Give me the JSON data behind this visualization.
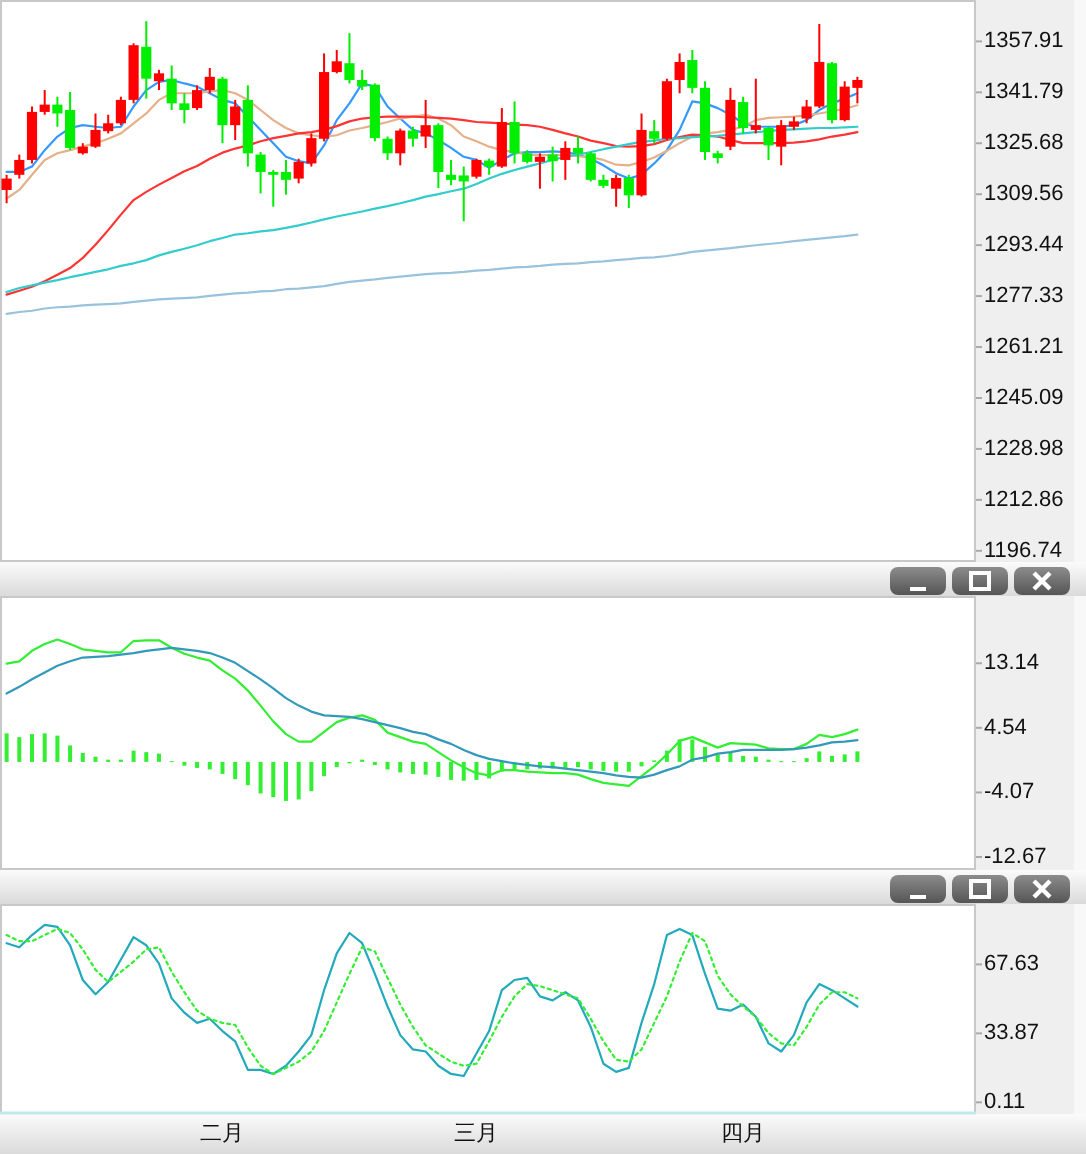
{
  "chart_data": [
    {
      "type": "candlestick",
      "categories": [
        null,
        null,
        null,
        null,
        null,
        null,
        null,
        null,
        null,
        null,
        null,
        null,
        null,
        null,
        null,
        null,
        null,
        null,
        null,
        null,
        null,
        null,
        null,
        null,
        null,
        null,
        null,
        null,
        null,
        null,
        null,
        null,
        null,
        null,
        null,
        null,
        null,
        null,
        null,
        null,
        null,
        null,
        null,
        null,
        null,
        null,
        null,
        null,
        null,
        null,
        null,
        null,
        null,
        null,
        null,
        null,
        null,
        null,
        null,
        null,
        null,
        null,
        null,
        null,
        null,
        null,
        null,
        null
      ],
      "ohlc": [
        [
          1310.9,
          1315.7,
          1306.7,
          1314.5
        ],
        [
          1315.7,
          1322.1,
          1314.5,
          1320.4
        ],
        [
          1320.4,
          1337.3,
          1319.3,
          1335.6
        ],
        [
          1335.6,
          1342.5,
          1334.7,
          1337.9
        ],
        [
          1337.9,
          1340.4,
          1330.9,
          1335.1
        ],
        [
          1336.2,
          1341.9,
          1323.5,
          1324.2
        ],
        [
          1322.5,
          1325.7,
          1322.1,
          1324.6
        ],
        [
          1324.6,
          1335.1,
          1324.2,
          1329.9
        ],
        [
          1329.5,
          1334.7,
          1328.8,
          1332.0
        ],
        [
          1332.0,
          1340.4,
          1331.4,
          1339.4
        ],
        [
          1339.4,
          1357.3,
          1338.3,
          1356.7
        ],
        [
          1356.2,
          1364.3,
          1339.8,
          1346.1
        ],
        [
          1345.3,
          1348.9,
          1342.5,
          1347.8
        ],
        [
          1346.1,
          1350.3,
          1336.2,
          1338.3
        ],
        [
          1338.3,
          1341.5,
          1332.0,
          1336.2
        ],
        [
          1336.8,
          1344.0,
          1336.2,
          1342.5
        ],
        [
          1342.5,
          1349.5,
          1341.5,
          1346.7
        ],
        [
          1346.1,
          1346.7,
          1325.7,
          1331.4
        ],
        [
          1331.4,
          1339.4,
          1326.7,
          1337.3
        ],
        [
          1339.4,
          1344.0,
          1318.3,
          1322.5
        ],
        [
          1322.1,
          1322.9,
          1309.8,
          1316.6
        ],
        [
          1316.6,
          1317.2,
          1305.6,
          1315.7
        ],
        [
          1316.6,
          1320.4,
          1309.4,
          1314.1
        ],
        [
          1314.5,
          1320.8,
          1313.0,
          1319.8
        ],
        [
          1319.3,
          1328.8,
          1318.3,
          1327.3
        ],
        [
          1327.1,
          1354.1,
          1326.3,
          1348.2
        ],
        [
          1348.2,
          1355.2,
          1347.8,
          1351.6
        ],
        [
          1351.0,
          1360.5,
          1344.6,
          1345.7
        ],
        [
          1345.7,
          1348.9,
          1342.5,
          1343.6
        ],
        [
          1344.2,
          1344.6,
          1326.3,
          1327.3
        ],
        [
          1327.1,
          1327.8,
          1320.4,
          1322.5
        ],
        [
          1322.5,
          1330.3,
          1318.7,
          1329.7
        ],
        [
          1329.7,
          1330.9,
          1324.6,
          1327.1
        ],
        [
          1327.8,
          1339.4,
          1324.2,
          1331.4
        ],
        [
          1331.4,
          1332.0,
          1311.5,
          1316.6
        ],
        [
          1315.7,
          1320.4,
          1312.4,
          1314.1
        ],
        [
          1315.5,
          1318.3,
          1301.0,
          1313.6
        ],
        [
          1315.1,
          1320.8,
          1314.5,
          1320.4
        ],
        [
          1320.2,
          1320.8,
          1315.7,
          1318.3
        ],
        [
          1318.3,
          1336.8,
          1317.9,
          1332.4
        ],
        [
          1332.4,
          1338.9,
          1319.3,
          1322.5
        ],
        [
          1322.5,
          1323.5,
          1319.3,
          1319.8
        ],
        [
          1319.8,
          1322.5,
          1311.3,
          1321.4
        ],
        [
          1322.1,
          1324.6,
          1313.6,
          1320.0
        ],
        [
          1320.4,
          1326.3,
          1314.1,
          1324.2
        ],
        [
          1324.2,
          1327.8,
          1319.3,
          1322.5
        ],
        [
          1322.5,
          1322.9,
          1313.6,
          1314.1
        ],
        [
          1314.1,
          1315.7,
          1311.5,
          1312.2
        ],
        [
          1311.3,
          1315.7,
          1305.6,
          1314.7
        ],
        [
          1314.7,
          1315.7,
          1305.2,
          1309.2
        ],
        [
          1309.2,
          1335.1,
          1308.8,
          1329.9
        ],
        [
          1329.5,
          1333.0,
          1325.7,
          1327.1
        ],
        [
          1327.1,
          1346.1,
          1326.7,
          1345.3
        ],
        [
          1345.7,
          1354.1,
          1341.5,
          1351.4
        ],
        [
          1352.0,
          1355.2,
          1341.5,
          1343.2
        ],
        [
          1343.2,
          1345.3,
          1320.4,
          1322.9
        ],
        [
          1322.5,
          1323.3,
          1319.3,
          1321.0
        ],
        [
          1324.6,
          1343.2,
          1323.5,
          1339.4
        ],
        [
          1338.7,
          1340.4,
          1328.8,
          1330.5
        ],
        [
          1329.9,
          1346.1,
          1328.8,
          1331.4
        ],
        [
          1330.5,
          1330.9,
          1320.4,
          1325.0
        ],
        [
          1324.6,
          1333.0,
          1318.7,
          1331.4
        ],
        [
          1330.9,
          1334.1,
          1329.9,
          1332.6
        ],
        [
          1333.5,
          1339.4,
          1332.0,
          1337.3
        ],
        [
          1337.3,
          1363.4,
          1336.8,
          1351.4
        ],
        [
          1351.0,
          1351.4,
          1332.0,
          1333.0
        ],
        [
          1333.0,
          1345.3,
          1332.6,
          1343.6
        ],
        [
          1343.2,
          1346.7,
          1338.3,
          1345.7
        ]
      ],
      "colors": [
        "#ff0000",
        "#ff0000",
        "#ff0000",
        "#ff0000",
        "#00ee00",
        "#00ee00",
        "#ff0000",
        "#ff0000",
        "#ff0000",
        "#ff0000",
        "#ff0000",
        "#00ee00",
        "#ff0000",
        "#00ee00",
        "#00ee00",
        "#ff0000",
        "#ff0000",
        "#00ee00",
        "#ff0000",
        "#00ee00",
        "#00ee00",
        "#00ee00",
        "#00ee00",
        "#ff0000",
        "#ff0000",
        "#ff0000",
        "#ff0000",
        "#00ee00",
        "#00ee00",
        "#00ee00",
        "#00ee00",
        "#ff0000",
        "#00ee00",
        "#ff0000",
        "#00ee00",
        "#00ee00",
        "#00ee00",
        "#ff0000",
        "#00ee00",
        "#ff0000",
        "#00ee00",
        "#00ee00",
        "#ff0000",
        "#00ee00",
        "#ff0000",
        "#00ee00",
        "#00ee00",
        "#00ee00",
        "#ff0000",
        "#00ee00",
        "#ff0000",
        "#00ee00",
        "#ff0000",
        "#ff0000",
        "#00ee00",
        "#00ee00",
        "#00ee00",
        "#ff0000",
        "#00ee00",
        "#ff0000",
        "#00ee00",
        "#ff0000",
        "#ff0000",
        "#ff0000",
        "#ff0000",
        "#00ee00",
        "#ff0000",
        "#ff0000"
      ],
      "series": [
        {
          "type": "line",
          "color": "#3399ff",
          "values": [
            1316.6,
            1316.6,
            1318.3,
            1323.5,
            1327.8,
            1330.5,
            1331.4,
            1330.9,
            1330.5,
            1330.9,
            1337.3,
            1342.5,
            1345.1,
            1345.7,
            1344.6,
            1343.6,
            1341.5,
            1339.4,
            1338.3,
            1334.1,
            1329.9,
            1325.7,
            1321.4,
            1320.0,
            1319.3,
            1325.0,
            1333.0,
            1338.3,
            1344.6,
            1343.6,
            1337.3,
            1333.5,
            1329.9,
            1328.8,
            1326.7,
            1324.2,
            1321.4,
            1320.4,
            1317.9,
            1320.4,
            1322.5,
            1322.9,
            1322.9,
            1323.1,
            1322.9,
            1322.1,
            1320.8,
            1318.7,
            1316.2,
            1314.5,
            1315.7,
            1319.3,
            1323.5,
            1329.9,
            1338.9,
            1338.3,
            1336.8,
            1334.7,
            1332.0,
            1330.9,
            1330.9,
            1330.9,
            1331.4,
            1333.0,
            1336.2,
            1338.3,
            1339.8,
            1341.5
          ]
        },
        {
          "type": "line",
          "color": "#e6b08a",
          "values": [
            1308.2,
            1310.9,
            1315.7,
            1320.4,
            1322.5,
            1323.5,
            1324.6,
            1325.7,
            1327.1,
            1328.8,
            1332.0,
            1335.1,
            1339.4,
            1341.5,
            1341.5,
            1341.5,
            1342.1,
            1342.5,
            1341.5,
            1339.4,
            1336.2,
            1333.0,
            1330.5,
            1328.8,
            1328.2,
            1327.8,
            1328.2,
            1329.7,
            1330.5,
            1331.4,
            1332.4,
            1333.5,
            1334.1,
            1334.7,
            1333.5,
            1331.4,
            1327.8,
            1326.3,
            1324.6,
            1323.5,
            1322.9,
            1322.1,
            1321.9,
            1321.9,
            1321.9,
            1321.6,
            1321.2,
            1320.4,
            1318.9,
            1318.7,
            1319.8,
            1321.2,
            1323.3,
            1325.7,
            1327.8,
            1328.8,
            1329.2,
            1329.9,
            1330.9,
            1333.0,
            1333.7,
            1333.9,
            1334.1,
            1334.5,
            1335.1,
            1335.8,
            1336.6,
            1337.7
          ]
        },
        {
          "type": "line",
          "color": "#ff3333",
          "values": [
            1277.8,
            1279.0,
            1280.3,
            1282.0,
            1284.1,
            1286.2,
            1289.4,
            1293.6,
            1298.2,
            1303.1,
            1307.7,
            1310.3,
            1312.6,
            1314.7,
            1316.8,
            1318.5,
            1320.8,
            1322.7,
            1324.0,
            1325.0,
            1326.3,
            1327.3,
            1328.0,
            1328.8,
            1329.2,
            1329.9,
            1331.1,
            1332.6,
            1333.5,
            1333.9,
            1334.1,
            1334.1,
            1334.1,
            1333.9,
            1333.7,
            1333.5,
            1333.0,
            1332.4,
            1332.2,
            1332.0,
            1331.6,
            1331.4,
            1330.9,
            1329.9,
            1328.8,
            1327.8,
            1326.5,
            1325.7,
            1324.8,
            1324.6,
            1324.8,
            1325.4,
            1326.7,
            1327.6,
            1328.4,
            1328.2,
            1327.8,
            1326.7,
            1325.7,
            1325.7,
            1325.7,
            1325.7,
            1325.9,
            1326.3,
            1326.9,
            1327.8,
            1328.4,
            1329.2
          ]
        },
        {
          "type": "line",
          "color": "#33cccc",
          "values": [
            1278.6,
            1279.9,
            1280.7,
            1281.6,
            1282.4,
            1283.3,
            1284.1,
            1285.0,
            1285.8,
            1286.9,
            1287.7,
            1288.7,
            1290.2,
            1291.3,
            1292.3,
            1293.4,
            1294.7,
            1295.7,
            1296.8,
            1297.2,
            1297.8,
            1298.2,
            1298.9,
            1299.7,
            1300.6,
            1301.6,
            1302.5,
            1303.3,
            1304.1,
            1305.0,
            1305.8,
            1306.7,
            1307.7,
            1308.8,
            1309.6,
            1310.5,
            1311.3,
            1312.8,
            1314.5,
            1316.0,
            1317.2,
            1318.3,
            1319.3,
            1320.4,
            1321.4,
            1322.1,
            1322.9,
            1323.8,
            1324.6,
            1325.4,
            1326.1,
            1326.5,
            1327.1,
            1327.3,
            1327.6,
            1327.8,
            1328.0,
            1328.4,
            1328.8,
            1329.2,
            1329.5,
            1329.9,
            1330.1,
            1330.3,
            1330.5,
            1330.5,
            1330.7,
            1330.9
          ]
        },
        {
          "type": "line",
          "color": "#99c2dd",
          "values": [
            1271.7,
            1272.3,
            1272.7,
            1273.4,
            1273.8,
            1274.0,
            1274.4,
            1274.6,
            1274.8,
            1275.0,
            1275.5,
            1275.9,
            1276.3,
            1276.5,
            1276.7,
            1276.9,
            1277.4,
            1277.8,
            1278.2,
            1278.4,
            1278.8,
            1279.0,
            1279.5,
            1279.7,
            1280.1,
            1280.5,
            1281.2,
            1281.8,
            1282.2,
            1282.6,
            1283.1,
            1283.5,
            1283.9,
            1284.3,
            1284.5,
            1284.7,
            1285.0,
            1285.4,
            1285.6,
            1286.0,
            1286.4,
            1286.6,
            1286.9,
            1287.3,
            1287.5,
            1287.7,
            1288.1,
            1288.3,
            1288.7,
            1289.0,
            1289.4,
            1289.6,
            1290.0,
            1290.6,
            1291.3,
            1291.7,
            1292.1,
            1292.5,
            1293.0,
            1293.4,
            1293.8,
            1294.2,
            1294.7,
            1295.1,
            1295.5,
            1295.9,
            1296.3,
            1296.8
          ]
        }
      ],
      "ylim": [
        1193.2,
        1371.0
      ],
      "yticks": [
        1196.74,
        1212.86,
        1228.98,
        1245.09,
        1261.21,
        1277.33,
        1293.44,
        1309.56,
        1325.68,
        1341.79,
        1357.91
      ],
      "tick_labels": "y"
    },
    {
      "type": "line",
      "categories": [
        null,
        null,
        null,
        null,
        null,
        null,
        null,
        null,
        null,
        null,
        null,
        null,
        null,
        null,
        null,
        null,
        null,
        null,
        null,
        null,
        null,
        null,
        null,
        null,
        null,
        null,
        null,
        null,
        null,
        null,
        null,
        null,
        null,
        null,
        null,
        null,
        null,
        null,
        null,
        null,
        null,
        null,
        null,
        null,
        null,
        null,
        null,
        null,
        null,
        null,
        null,
        null,
        null,
        null,
        null,
        null,
        null,
        null,
        null,
        null,
        null,
        null,
        null,
        null,
        null,
        null,
        null,
        null
      ],
      "series": [
        {
          "type": "bar",
          "color": "#33ee33",
          "values": [
            3.8,
            3.3,
            3.7,
            3.8,
            3.5,
            2.2,
            1.2,
            0.7,
            0.3,
            0.3,
            1.5,
            1.3,
            1.1,
            0.1,
            -0.5,
            -0.8,
            -1.0,
            -1.6,
            -2.3,
            -3.1,
            -4.2,
            -4.7,
            -5.2,
            -5.0,
            -3.9,
            -1.9,
            -0.7,
            -0.2,
            0.3,
            -0.4,
            -1.0,
            -1.4,
            -1.6,
            -1.7,
            -2.0,
            -2.4,
            -2.5,
            -2.4,
            -2.2,
            -1.3,
            -1.0,
            -1.0,
            -0.9,
            -0.9,
            -0.8,
            -0.7,
            -1.0,
            -1.2,
            -1.3,
            -1.3,
            -0.6,
            0.2,
            1.5,
            3.0,
            3.0,
            2.0,
            1.0,
            1.3,
            0.8,
            0.7,
            0.3,
            0.1,
            0.1,
            0.5,
            1.4,
            0.8,
            1.0,
            1.4
          ]
        },
        {
          "type": "line",
          "color": "#33ee33",
          "values": [
            13.1,
            13.4,
            14.8,
            15.7,
            16.3,
            15.7,
            15.0,
            14.8,
            14.6,
            14.6,
            16.1,
            16.2,
            16.2,
            15.2,
            14.4,
            13.9,
            13.5,
            12.2,
            11.1,
            9.5,
            7.5,
            5.4,
            3.7,
            2.7,
            2.7,
            4.0,
            5.3,
            5.9,
            6.2,
            5.6,
            3.9,
            3.3,
            2.7,
            2.4,
            1.3,
            0.2,
            -0.7,
            -1.5,
            -1.8,
            -1.1,
            -1.1,
            -1.3,
            -1.4,
            -1.5,
            -1.5,
            -1.7,
            -2.3,
            -2.8,
            -3.0,
            -3.2,
            -1.9,
            -0.6,
            1.0,
            2.8,
            3.3,
            2.6,
            1.9,
            2.5,
            2.4,
            2.3,
            1.8,
            1.7,
            1.7,
            2.4,
            3.6,
            3.3,
            3.7,
            4.3
          ]
        },
        {
          "type": "line",
          "color": "#3399bb",
          "values": [
            9.1,
            10.0,
            11.0,
            11.9,
            12.8,
            13.4,
            13.9,
            14.0,
            14.1,
            14.3,
            14.5,
            14.8,
            15.0,
            15.2,
            15.0,
            14.8,
            14.5,
            13.9,
            13.2,
            12.1,
            11.0,
            9.8,
            8.5,
            7.5,
            6.7,
            6.2,
            6.1,
            6.0,
            5.7,
            5.3,
            4.9,
            4.5,
            4.0,
            3.7,
            3.0,
            2.4,
            1.6,
            0.9,
            0.4,
            0.1,
            -0.2,
            -0.4,
            -0.6,
            -0.7,
            -0.9,
            -1.1,
            -1.3,
            -1.5,
            -1.8,
            -2.0,
            -2.1,
            -1.7,
            -1.1,
            -0.6,
            0.3,
            0.6,
            1.1,
            1.3,
            1.6,
            1.6,
            1.6,
            1.6,
            1.7,
            1.9,
            2.2,
            2.6,
            2.7,
            2.9
          ]
        }
      ],
      "ylim": [
        -14.4,
        22.1
      ],
      "yticks": [
        -12.67,
        -4.07,
        4.54,
        13.14
      ],
      "tick_labels": "y"
    },
    {
      "type": "line",
      "categories": [
        null,
        null,
        null,
        null,
        null,
        null,
        null,
        null,
        null,
        null,
        null,
        null,
        null,
        null,
        null,
        null,
        null,
        "二月",
        null,
        null,
        null,
        null,
        null,
        null,
        null,
        null,
        null,
        null,
        null,
        null,
        null,
        null,
        null,
        null,
        null,
        null,
        null,
        "三月",
        null,
        null,
        null,
        null,
        null,
        null,
        null,
        null,
        null,
        null,
        null,
        null,
        null,
        null,
        null,
        null,
        null,
        null,
        null,
        null,
        "四月",
        null,
        null,
        null,
        null,
        null,
        null,
        null,
        null,
        null
      ],
      "series": [
        {
          "type": "line",
          "color": "#22aabb",
          "values": [
            78,
            76,
            82,
            87,
            86,
            77,
            60,
            53,
            59,
            70,
            81,
            77,
            68,
            51,
            44,
            39,
            41,
            35,
            30,
            16,
            16,
            14,
            18,
            25,
            33,
            55,
            73,
            83,
            78,
            63,
            47,
            33,
            26,
            25,
            18,
            14,
            13,
            24,
            35,
            55,
            60,
            61,
            52,
            50,
            54,
            50,
            37,
            19,
            15,
            17,
            39,
            58,
            82,
            85,
            82,
            63,
            46,
            45,
            48,
            42,
            29,
            25,
            33,
            49,
            58,
            55,
            51,
            47
          ]
        },
        {
          "type": "line",
          "color": "#33ee33",
          "line_style": "dotted",
          "values": [
            82,
            79,
            79,
            82,
            85,
            83,
            75,
            65,
            59,
            64,
            69,
            75,
            76,
            64,
            54,
            45,
            41,
            39,
            38,
            27,
            18,
            14,
            17,
            20,
            25,
            35,
            49,
            63,
            76,
            74,
            61,
            48,
            37,
            28,
            24,
            20,
            18,
            19,
            30,
            42,
            52,
            58,
            57,
            55,
            53,
            51,
            41,
            30,
            21,
            20,
            26,
            39,
            52,
            69,
            83,
            79,
            62,
            53,
            47,
            42,
            34,
            29,
            28,
            37,
            48,
            54,
            54,
            51
          ]
        }
      ],
      "ylim": [
        -5.6,
        97.2
      ],
      "yticks": [
        0.11,
        33.87,
        67.63
      ]
    }
  ]
}
